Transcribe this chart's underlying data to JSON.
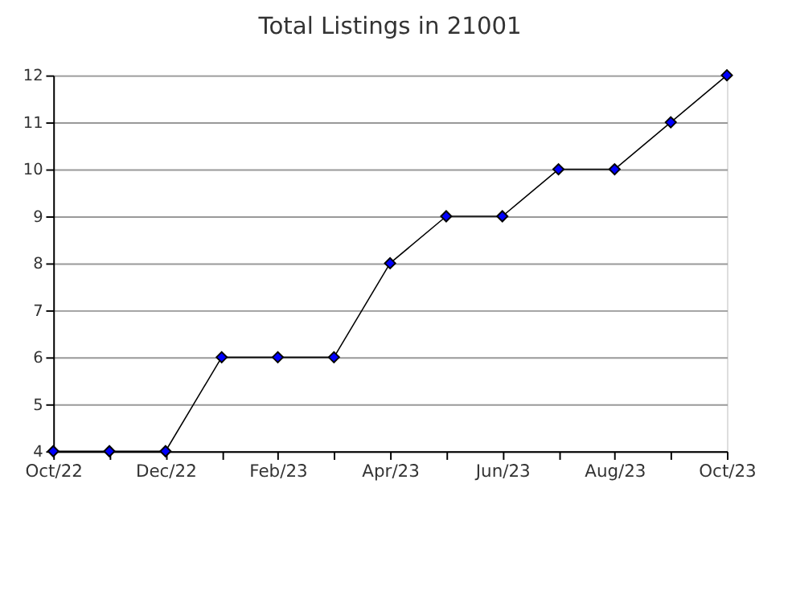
{
  "chart_data": {
    "type": "line",
    "title": "Total Listings in 21001",
    "categories": [
      "Oct/22",
      null,
      "Dec/22",
      null,
      "Feb/23",
      null,
      "Apr/23",
      null,
      "Jun/23",
      null,
      "Aug/23",
      null,
      "Oct/23"
    ],
    "series": [
      {
        "color": "#0000ff",
        "values": [
          4,
          4,
          4,
          6,
          6,
          6,
          8,
          9,
          9,
          10,
          10,
          11,
          12
        ]
      }
    ],
    "ylim": [
      4,
      12
    ],
    "yticks": [
      4,
      5,
      6,
      7,
      8,
      9,
      10,
      11,
      12
    ],
    "grid": "y",
    "marker": "diamond",
    "line_style": "solid"
  }
}
